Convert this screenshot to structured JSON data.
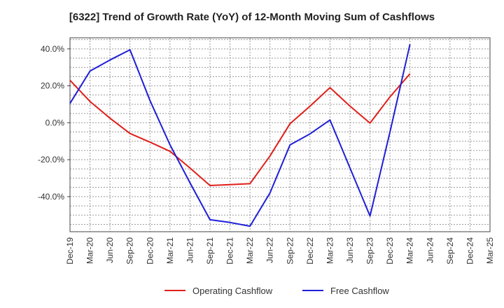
{
  "chart_data": {
    "type": "line",
    "title": "[6322]  Trend of Growth Rate (YoY) of 12-Month Moving Sum of Cashflows",
    "x_ticks": [
      "Dec-19",
      "Mar-20",
      "Jun-20",
      "Sep-20",
      "Dec-20",
      "Mar-21",
      "Jun-21",
      "Sep-21",
      "Dec-21",
      "Mar-22",
      "Jun-22",
      "Sep-22",
      "Dec-22",
      "Mar-23",
      "Jun-23",
      "Sep-23",
      "Dec-23",
      "Mar-24",
      "Jun-24",
      "Sep-24",
      "Dec-24",
      "Mar-25"
    ],
    "y_ticks": [
      "40.0%",
      "20.0%",
      "0.0%",
      "-20.0%",
      "-40.0%"
    ],
    "y_tick_values": [
      40,
      20,
      0,
      -20,
      -40
    ],
    "ylim": [
      -59,
      46
    ],
    "grid": true,
    "legend_position": "bottom-center",
    "series": [
      {
        "name": "Operating Cashflow",
        "color": "#e0201b",
        "values": [
          23.0,
          11.5,
          2.5,
          -5.8,
          -10.5,
          -15.5,
          -24.5,
          -34.0,
          -33.5,
          -33.0,
          -18.0,
          -0.5,
          9.0,
          19.0,
          9.0,
          -0.2,
          14.0,
          26.5,
          null,
          null,
          null,
          null
        ]
      },
      {
        "name": "Free Cashflow",
        "color": "#1f1fd8",
        "values": [
          10.5,
          28.0,
          34.0,
          39.5,
          12.0,
          -12.0,
          -32.5,
          -52.5,
          -54.0,
          -56.0,
          -38.0,
          -12.0,
          -6.0,
          1.5,
          -24.5,
          -50.5,
          -5.0,
          42.5,
          null,
          null,
          null,
          null
        ]
      }
    ]
  }
}
